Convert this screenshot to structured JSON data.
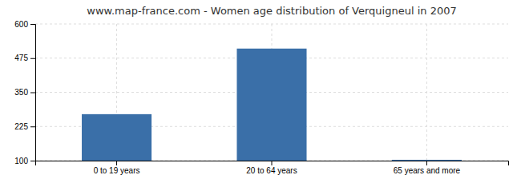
{
  "chart_data": {
    "type": "bar",
    "title": "www.map-france.com - Women age distribution of Verquigneul in 2007",
    "categories": [
      "0 to 19 years",
      "20 to 64 years",
      "65 years and more"
    ],
    "values": [
      270,
      510,
      103
    ],
    "color": "#3a6fa8",
    "ylim": [
      100,
      600
    ],
    "yticks": [
      100,
      225,
      350,
      475,
      600
    ],
    "grid": true
  }
}
